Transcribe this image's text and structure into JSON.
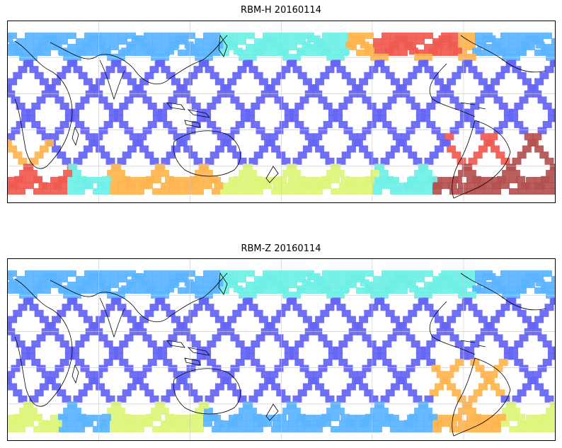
{
  "figure": {
    "panels": [
      {
        "title": "RBM-H 20160114",
        "variant": "H"
      },
      {
        "title": "RBM-Z 20160114",
        "variant": "Z"
      }
    ]
  },
  "colors": {
    "low": "#6464f6",
    "low_mid": "#5ab4ff",
    "mid": "#6ef0e6",
    "mid_high": "#dcf57a",
    "high": "#ffb44e",
    "very_high": "#f05a50",
    "extreme": "#b45050",
    "coast": "#000000",
    "grid": "#c8c8c8"
  }
}
